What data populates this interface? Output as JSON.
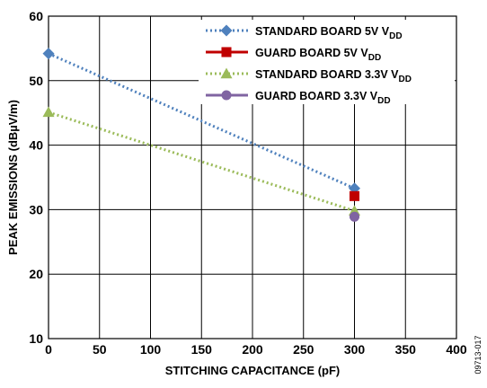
{
  "chart_data": {
    "type": "line",
    "title": "",
    "xlabel": "STITCHING CAPACITANCE (pF)",
    "ylabel": "PEAK EMISSIONS (dBµV/m)",
    "xlim": [
      0,
      400
    ],
    "ylim": [
      10,
      60
    ],
    "xticks": [
      "0",
      "50",
      "100",
      "150",
      "200",
      "250",
      "300",
      "350",
      "400"
    ],
    "yticks": [
      "10",
      "20",
      "30",
      "40",
      "50",
      "60"
    ],
    "grid": true,
    "legend_position": "top-right",
    "series": [
      {
        "name": "STANDARD BOARD 5V V",
        "name_sub": "DD",
        "color": "#4f81bd",
        "line": "dotted",
        "marker": "diamond",
        "x": [
          0,
          300
        ],
        "y": [
          54.2,
          33.3
        ]
      },
      {
        "name": "GUARD BOARD 5V V",
        "name_sub": "DD",
        "color": "#c00000",
        "line": "solid",
        "marker": "square",
        "x": [
          300
        ],
        "y": [
          32.1
        ]
      },
      {
        "name": "STANDARD BOARD 3.3V V",
        "name_sub": "DD",
        "color": "#9bbb59",
        "line": "dotted",
        "marker": "triangle",
        "x": [
          0,
          300
        ],
        "y": [
          45.1,
          29.8
        ]
      },
      {
        "name": "GUARD BOARD 3.3V V",
        "name_sub": "DD",
        "color": "#8064a2",
        "line": "solid",
        "marker": "circle",
        "x": [
          300
        ],
        "y": [
          28.9
        ]
      }
    ]
  },
  "figure_id": "09713-017"
}
